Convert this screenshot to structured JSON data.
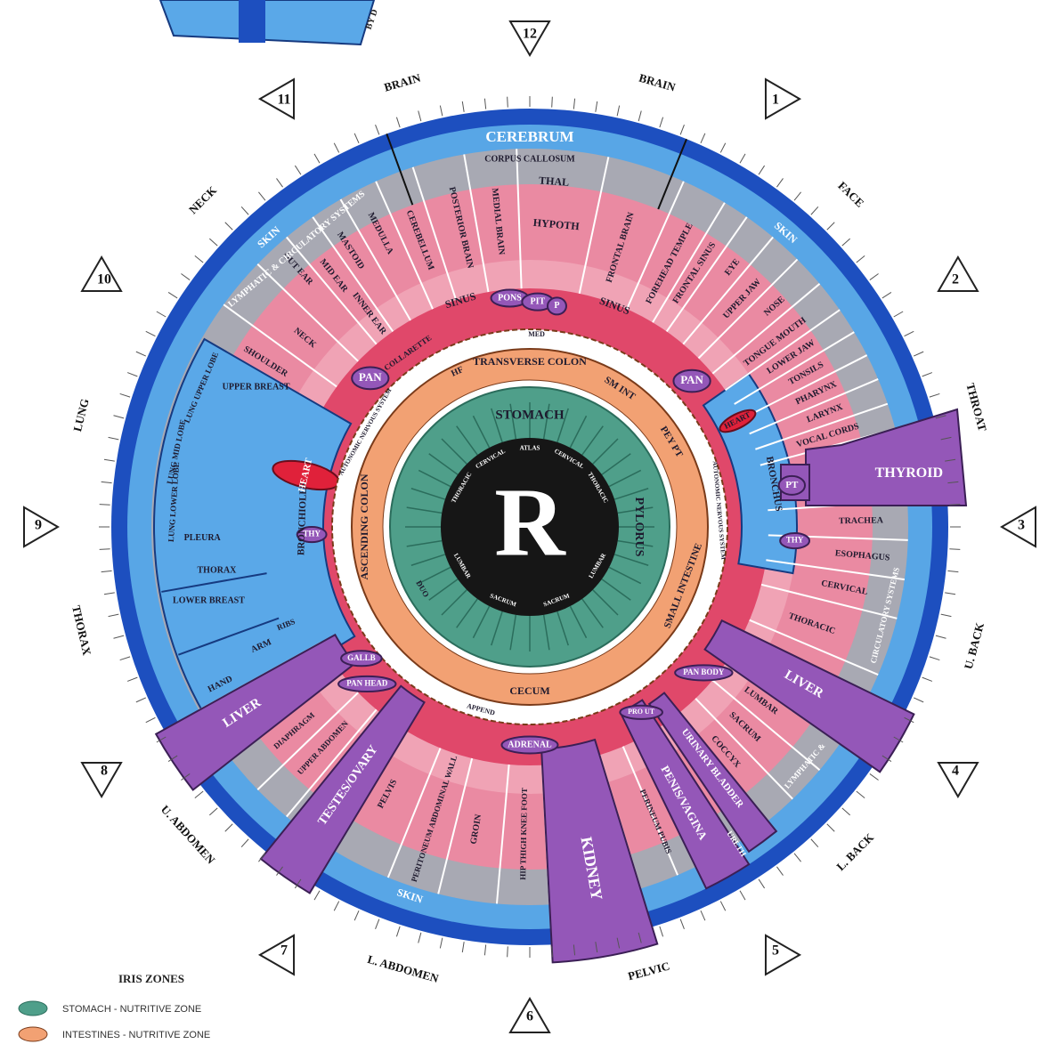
{
  "center_label": "R",
  "credit": "BY D",
  "clock_numbers": [
    "12",
    "1",
    "2",
    "3",
    "4",
    "5",
    "6",
    "7",
    "8",
    "9",
    "10",
    "11"
  ],
  "zones": [
    "BRAIN",
    "BRAIN",
    "FACE",
    "THROAT",
    "U. BACK",
    "L. BACK",
    "PELVIC",
    "L. ABDOMEN",
    "U. ABDOMEN",
    "THORAX",
    "LUNG",
    "NECK"
  ],
  "labels": [
    "CEREBRUM",
    "CORPUS CALLOSUM",
    "THAL",
    "HYPOTH",
    "SKIN",
    "SKIN",
    "SKIN",
    "CEREBELLUM",
    "POSTERIOR BRAIN",
    "MEDIAL BRAIN",
    "FRONTAL BRAIN",
    "FOREHEAD TEMPLE",
    "FRONTAL SINUS",
    "EYE",
    "UPPER JAW",
    "NOSE",
    "TONGUE MOUTH",
    "LOWER JAW",
    "TONSILS",
    "PHARYNX",
    "LARYNX",
    "VOCAL CORDS",
    "THYROID",
    "PT",
    "TRACHEA",
    "ESOPHAGUS",
    "CERVICAL",
    "THORACIC",
    "LIVER",
    "LUMBAR",
    "SACRUM",
    "COCCYX",
    "LYMPHATIC &",
    "CIRCULATORY SYSTEMS",
    "URETH",
    "URINARY BLADDER",
    "PENIS/VAGINA",
    "PRO UT",
    "PERINEUM PUBIS",
    "KIDNEY",
    "HIP THIGH KNEE FOOT",
    "GROIN",
    "PERITONEUM ABDOMINAL WALL",
    "PELVIS",
    "TESTES/OVARY",
    "UPPER ABDOMEN",
    "DIAPHRAGM",
    "LIVER",
    "HAND",
    "ARM",
    "RIBS",
    "LOWER BREAST",
    "THORAX",
    "PLEURA",
    "BRONCHIOLES",
    "LUNG UPPER LOBE",
    "LUNG MID LOBE",
    "LUNG LOWER LOBE",
    "UPPER BREAST",
    "SHOULDER",
    "NECK",
    "OUT EAR",
    "MID EAR",
    "INNER EAR",
    "MASTOID",
    "MEDULLA",
    "LYMPHATIC & CIRCULATORY SYSTEMS",
    "SINUS",
    "SINUS",
    "PONS",
    "PIT",
    "P",
    "MED",
    "COLLARETTE",
    "PAN",
    "PAN",
    "HEART",
    "HEART",
    "BRONCHUS",
    "THY",
    "THY",
    "GALLB",
    "PAN HEAD",
    "PAN BODY",
    "ADRENAL",
    "APPEND",
    "TRANSVERSE COLON",
    "ASCENDING COLON",
    "CECUM",
    "SM INT",
    "SMALL INTESTINE",
    "PEY PT",
    "HF",
    "AUTONOMIC NERVOUS SYSTEM",
    "AUTONOMIC NERVOUS SYSTEM",
    "STOMACH",
    "PYLORUS",
    "ATLAS",
    "CERVICAL",
    "CERVICAL",
    "THORACIC",
    "THORACIC",
    "LUMBAR",
    "LUMBAR",
    "SACRUM",
    "SACRUM",
    "DUO"
  ],
  "legend": {
    "title": "IRIS ZONES",
    "items": [
      "STOMACH - NUTRITIVE ZONE",
      "INTESTINES - NUTRITIVE ZONE"
    ]
  }
}
